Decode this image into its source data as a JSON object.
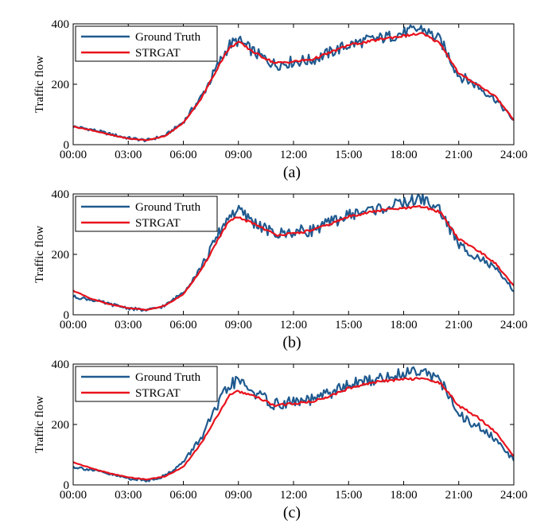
{
  "colors": {
    "ground_truth": "#1f5a8f",
    "strgat": "#e8121c",
    "axis": "#000000",
    "background": "#ffffff"
  },
  "chart_data": [
    {
      "type": "line",
      "panel_label": "(a)",
      "ylabel": "Traffic flow",
      "xlabel": "",
      "x_ticks": [
        "00:00",
        "03:00",
        "06:00",
        "09:00",
        "12:00",
        "15:00",
        "18:00",
        "21:00",
        "24:00"
      ],
      "y_ticks": [
        "0",
        "200",
        "400"
      ],
      "xlim": [
        0,
        24
      ],
      "ylim": [
        0,
        400
      ],
      "legend_position": "top-left",
      "grid": false,
      "x": [
        0,
        1,
        2,
        3,
        4,
        5,
        6,
        7,
        8,
        8.5,
        9,
        10,
        11,
        12,
        13,
        14,
        15,
        16,
        17,
        18,
        19,
        20,
        21,
        22,
        23,
        24
      ],
      "series": [
        {
          "name": "Ground Truth",
          "values": [
            60,
            50,
            35,
            22,
            14,
            30,
            75,
            160,
            275,
            330,
            345,
            300,
            265,
            275,
            280,
            305,
            330,
            345,
            355,
            370,
            385,
            345,
            230,
            195,
            150,
            80
          ]
        },
        {
          "name": "STRGAT",
          "values": [
            60,
            48,
            33,
            20,
            15,
            28,
            72,
            155,
            270,
            320,
            340,
            300,
            270,
            275,
            282,
            305,
            330,
            340,
            352,
            360,
            368,
            335,
            235,
            200,
            160,
            82
          ]
        }
      ]
    },
    {
      "type": "line",
      "panel_label": "(b)",
      "ylabel": "Traffic flow",
      "xlabel": "",
      "x_ticks": [
        "00:00",
        "03:00",
        "06:00",
        "09:00",
        "12:00",
        "15:00",
        "18:00",
        "21:00",
        "24:00"
      ],
      "y_ticks": [
        "0",
        "200",
        "400"
      ],
      "xlim": [
        0,
        24
      ],
      "ylim": [
        0,
        400
      ],
      "legend_position": "top-left",
      "grid": false,
      "x": [
        0,
        1,
        2,
        3,
        4,
        5,
        6,
        7,
        8,
        8.5,
        9,
        10,
        11,
        12,
        13,
        14,
        15,
        16,
        17,
        18,
        19,
        20,
        21,
        22,
        23,
        24
      ],
      "series": [
        {
          "name": "Ground Truth",
          "values": [
            60,
            50,
            35,
            22,
            14,
            30,
            75,
            160,
            275,
            330,
            345,
            300,
            265,
            275,
            280,
            305,
            330,
            345,
            355,
            370,
            385,
            345,
            230,
            195,
            150,
            80
          ]
        },
        {
          "name": "STRGAT",
          "values": [
            80,
            52,
            35,
            22,
            16,
            30,
            68,
            150,
            262,
            310,
            322,
            298,
            265,
            268,
            280,
            300,
            325,
            338,
            348,
            352,
            358,
            340,
            250,
            215,
            170,
            95
          ]
        }
      ]
    },
    {
      "type": "line",
      "panel_label": "(c)",
      "ylabel": "Traffic flow",
      "xlabel": "",
      "x_ticks": [
        "00:00",
        "03:00",
        "06:00",
        "09:00",
        "12:00",
        "15:00",
        "18:00",
        "21:00",
        "24:00"
      ],
      "y_ticks": [
        "0",
        "200",
        "400"
      ],
      "xlim": [
        0,
        24
      ],
      "ylim": [
        0,
        400
      ],
      "legend_position": "top-left",
      "grid": false,
      "x": [
        0,
        1,
        2,
        3,
        4,
        5,
        6,
        7,
        8,
        8.5,
        9,
        10,
        11,
        12,
        13,
        14,
        15,
        16,
        17,
        18,
        19,
        20,
        21,
        22,
        23,
        24
      ],
      "series": [
        {
          "name": "Ground Truth",
          "values": [
            60,
            50,
            35,
            22,
            14,
            30,
            75,
            160,
            275,
            330,
            345,
            300,
            265,
            275,
            280,
            305,
            330,
            345,
            355,
            370,
            385,
            345,
            230,
            195,
            150,
            80
          ]
        },
        {
          "name": "STRGAT",
          "values": [
            75,
            55,
            38,
            25,
            18,
            28,
            60,
            140,
            245,
            295,
            310,
            290,
            262,
            270,
            275,
            295,
            320,
            335,
            345,
            350,
            352,
            338,
            262,
            225,
            175,
            95
          ]
        }
      ]
    }
  ]
}
